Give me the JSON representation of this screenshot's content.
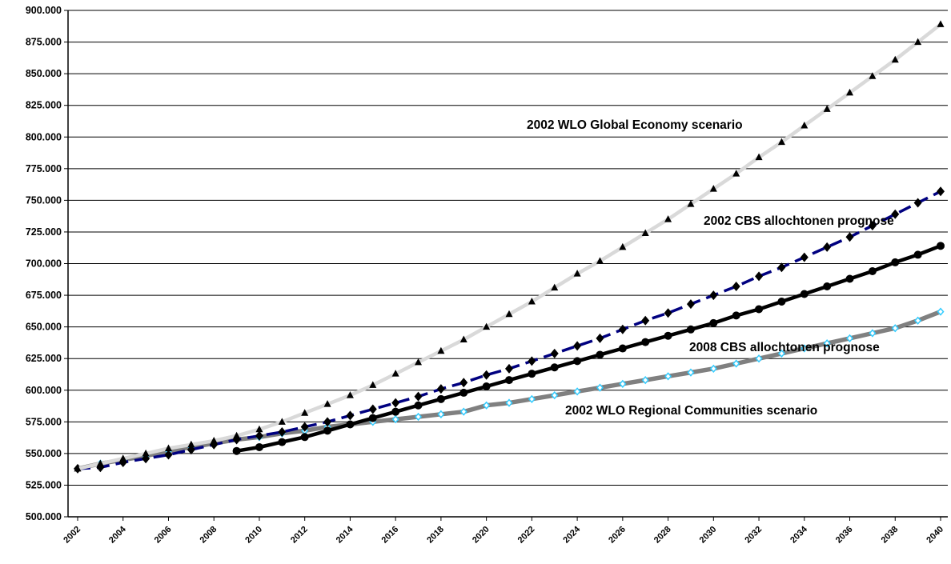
{
  "chart_data": {
    "type": "line",
    "ylim": [
      500000,
      900000
    ],
    "yticks": [
      "500.000",
      "525.000",
      "550.000",
      "575.000",
      "600.000",
      "625.000",
      "650.000",
      "675.000",
      "700.000",
      "725.000",
      "750.000",
      "775.000",
      "800.000",
      "825.000",
      "850.000",
      "875.000",
      "900.000"
    ],
    "xlim": [
      2002,
      2040
    ],
    "xticks": [
      "2002",
      "2004",
      "2006",
      "2008",
      "2010",
      "2012",
      "2014",
      "2016",
      "2018",
      "2020",
      "2022",
      "2024",
      "2026",
      "2028",
      "2030",
      "2032",
      "2034",
      "2036",
      "2038",
      "2040"
    ],
    "grid": "horizontal",
    "series": [
      {
        "name": "2002 WLO Global Economy scenario",
        "line_color": "#d9d9d9",
        "marker": "triangle",
        "marker_color": "#000000",
        "x": [
          2002,
          2003,
          2004,
          2005,
          2006,
          2007,
          2008,
          2009,
          2010,
          2011,
          2012,
          2013,
          2014,
          2015,
          2016,
          2017,
          2018,
          2019,
          2020,
          2021,
          2022,
          2023,
          2024,
          2025,
          2026,
          2027,
          2028,
          2029,
          2030,
          2031,
          2032,
          2033,
          2034,
          2035,
          2036,
          2037,
          2038,
          2039,
          2040
        ],
        "y": [
          538000,
          542000,
          546000,
          550000,
          554000,
          557000,
          560000,
          564000,
          569000,
          575000,
          582000,
          589000,
          596000,
          604000,
          613000,
          622000,
          631000,
          640000,
          650000,
          660000,
          670000,
          681000,
          692000,
          702000,
          713000,
          724000,
          735000,
          747000,
          759000,
          771000,
          784000,
          796000,
          809000,
          822000,
          835000,
          848000,
          861000,
          875000,
          889000
        ]
      },
      {
        "name": "2002 CBS allochtonen prognose",
        "line_color": "#000080",
        "marker": "diamond",
        "marker_color": "#000000",
        "x": [
          2002,
          2003,
          2004,
          2005,
          2006,
          2007,
          2008,
          2009,
          2010,
          2011,
          2012,
          2013,
          2014,
          2015,
          2016,
          2017,
          2018,
          2019,
          2020,
          2021,
          2022,
          2023,
          2024,
          2025,
          2026,
          2027,
          2028,
          2029,
          2030,
          2031,
          2032,
          2033,
          2034,
          2035,
          2036,
          2037,
          2038,
          2039,
          2040
        ],
        "y": [
          538000,
          539000,
          543000,
          546000,
          549000,
          553000,
          557000,
          561000,
          564000,
          567000,
          571000,
          575000,
          580000,
          585000,
          590000,
          595000,
          601000,
          606000,
          612000,
          617000,
          623000,
          629000,
          635000,
          641000,
          648000,
          655000,
          661000,
          668000,
          675000,
          682000,
          690000,
          697000,
          705000,
          713000,
          721000,
          730000,
          739000,
          748000,
          757000
        ]
      },
      {
        "name": "2008 CBS allochtonen prognose",
        "line_color": "#000000",
        "marker": "circle",
        "marker_color": "#000000",
        "x": [
          2009,
          2010,
          2011,
          2012,
          2013,
          2014,
          2015,
          2016,
          2017,
          2018,
          2019,
          2020,
          2021,
          2022,
          2023,
          2024,
          2025,
          2026,
          2027,
          2028,
          2029,
          2030,
          2031,
          2032,
          2033,
          2034,
          2035,
          2036,
          2037,
          2038,
          2039,
          2040
        ],
        "y": [
          552000,
          555000,
          559000,
          563000,
          568000,
          573000,
          578000,
          583000,
          588000,
          593000,
          598000,
          603000,
          608000,
          613000,
          618000,
          623000,
          628000,
          633000,
          638000,
          643000,
          648000,
          653000,
          659000,
          664000,
          670000,
          676000,
          682000,
          688000,
          694000,
          701000,
          707000,
          714000
        ]
      },
      {
        "name": "2002 WLO Regional Communities scenario",
        "line_color": "#808080",
        "marker": "diamond-small",
        "marker_color": "#33ccff",
        "x": [
          2002,
          2003,
          2004,
          2005,
          2006,
          2007,
          2008,
          2009,
          2010,
          2011,
          2012,
          2013,
          2014,
          2015,
          2016,
          2017,
          2018,
          2019,
          2020,
          2021,
          2022,
          2023,
          2024,
          2025,
          2026,
          2027,
          2028,
          2029,
          2030,
          2031,
          2032,
          2033,
          2034,
          2035,
          2036,
          2037,
          2038,
          2039,
          2040
        ],
        "y": [
          538000,
          542000,
          545000,
          548000,
          552000,
          555000,
          558000,
          561000,
          563000,
          566000,
          568000,
          571000,
          573000,
          575000,
          577000,
          579000,
          581000,
          583000,
          588000,
          590000,
          593000,
          596000,
          599000,
          602000,
          605000,
          608000,
          611000,
          614000,
          617000,
          621000,
          625000,
          629000,
          633000,
          637000,
          641000,
          645000,
          649000,
          655000,
          662000
        ]
      }
    ]
  }
}
